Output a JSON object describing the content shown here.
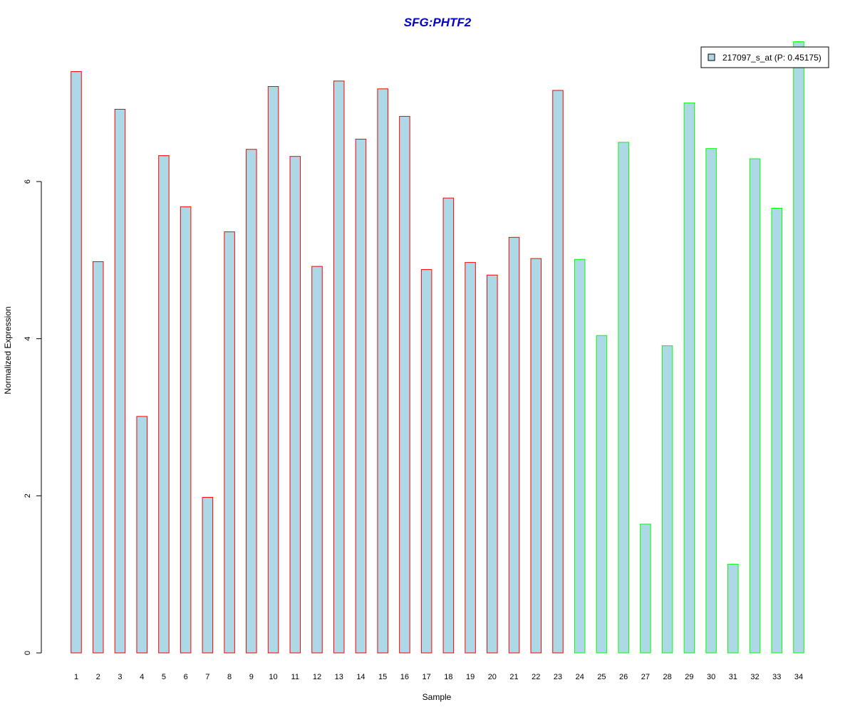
{
  "chart_data": {
    "type": "bar",
    "title": "SFG:PHTF2",
    "title_color": "#0000cc",
    "xlabel": "Sample",
    "ylabel": "Normalized Expression",
    "ylim": [
      0,
      7.85
    ],
    "yticks": [
      0,
      2,
      4,
      6
    ],
    "categories": [
      "1",
      "2",
      "3",
      "4",
      "5",
      "6",
      "7",
      "8",
      "9",
      "10",
      "11",
      "12",
      "13",
      "14",
      "15",
      "16",
      "17",
      "18",
      "19",
      "20",
      "21",
      "22",
      "23",
      "24",
      "25",
      "26",
      "27",
      "28",
      "29",
      "30",
      "31",
      "32",
      "33",
      "34"
    ],
    "series": [
      {
        "name": "217097_s_at (P: 0.45175)",
        "fill": "#add8e6",
        "values": [
          7.4,
          4.98,
          6.92,
          3.01,
          6.33,
          5.68,
          1.98,
          5.36,
          6.41,
          7.21,
          6.32,
          4.92,
          7.28,
          6.54,
          7.18,
          6.83,
          4.88,
          5.79,
          4.97,
          4.81,
          5.29,
          5.02,
          7.16,
          5.01,
          4.04,
          6.5,
          1.64,
          3.91,
          7.0,
          6.42,
          1.13,
          6.29,
          5.66,
          7.78
        ]
      }
    ],
    "border_colors": [
      "#ff0000",
      "#ff0000",
      "#ff0000",
      "#ff0000",
      "#ff0000",
      "#ff0000",
      "#ff0000",
      "#ff0000",
      "#ff0000",
      "#ff0000",
      "#ff0000",
      "#ff0000",
      "#ff0000",
      "#ff0000",
      "#ff0000",
      "#ff0000",
      "#ff0000",
      "#ff0000",
      "#ff0000",
      "#ff0000",
      "#ff0000",
      "#ff0000",
      "#ff0000",
      "#00ff00",
      "#00ff00",
      "#00ff00",
      "#00ff00",
      "#00ff00",
      "#00ff00",
      "#00ff00",
      "#00ff00",
      "#00ff00",
      "#00ff00",
      "#00ff00"
    ],
    "grid": false,
    "legend_position": "top-right"
  }
}
